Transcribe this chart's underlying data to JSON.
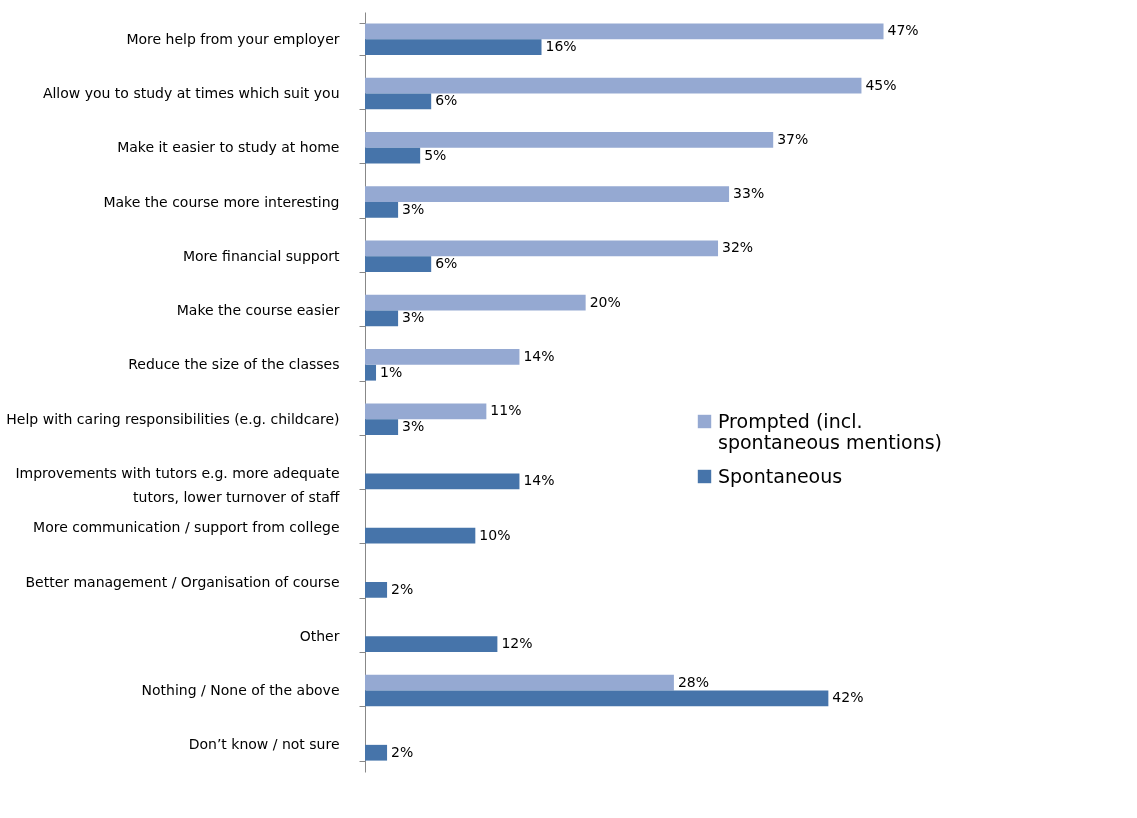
{
  "chart_data": {
    "type": "bar",
    "orientation": "horizontal",
    "legend": "right",
    "categories": [
      "More help from your employer",
      "Allow you to study at times which suit you",
      "Make it easier to study at home",
      "Make the course more interesting",
      "More financial support",
      "Make the course easier",
      "Reduce the size of the classes",
      "Help with caring responsibilities (e.g. childcare)",
      "Improvements with tutors e.g. more adequate\ntutors, lower turnover of staff",
      "More communication / support from college",
      "Better management / Organisation of course",
      "Other",
      "Nothing / None of the above",
      "Don’t know / not sure"
    ],
    "series": [
      {
        "name": "Prompted (incl.\nspontaneous mentions)",
        "color": "#95a9d2",
        "values": [
          47,
          45,
          37,
          33,
          32,
          20,
          14,
          11,
          null,
          null,
          null,
          null,
          28,
          null
        ],
        "value_labels": [
          "47%",
          "45%",
          "37%",
          "33%",
          "32%",
          "20%",
          "14%",
          "11%",
          null,
          null,
          null,
          null,
          "28%",
          null
        ]
      },
      {
        "name": "Spontaneous",
        "color": "#4674aa",
        "values": [
          16,
          6,
          5,
          3,
          6,
          3,
          1,
          3,
          14,
          10,
          2,
          12,
          42,
          2
        ],
        "value_labels": [
          "16%",
          "6%",
          "5%",
          "3%",
          "6%",
          "3%",
          "1%",
          "3%",
          "14%",
          "10%",
          "2%",
          "12%",
          "42%",
          "2%"
        ]
      }
    ]
  }
}
